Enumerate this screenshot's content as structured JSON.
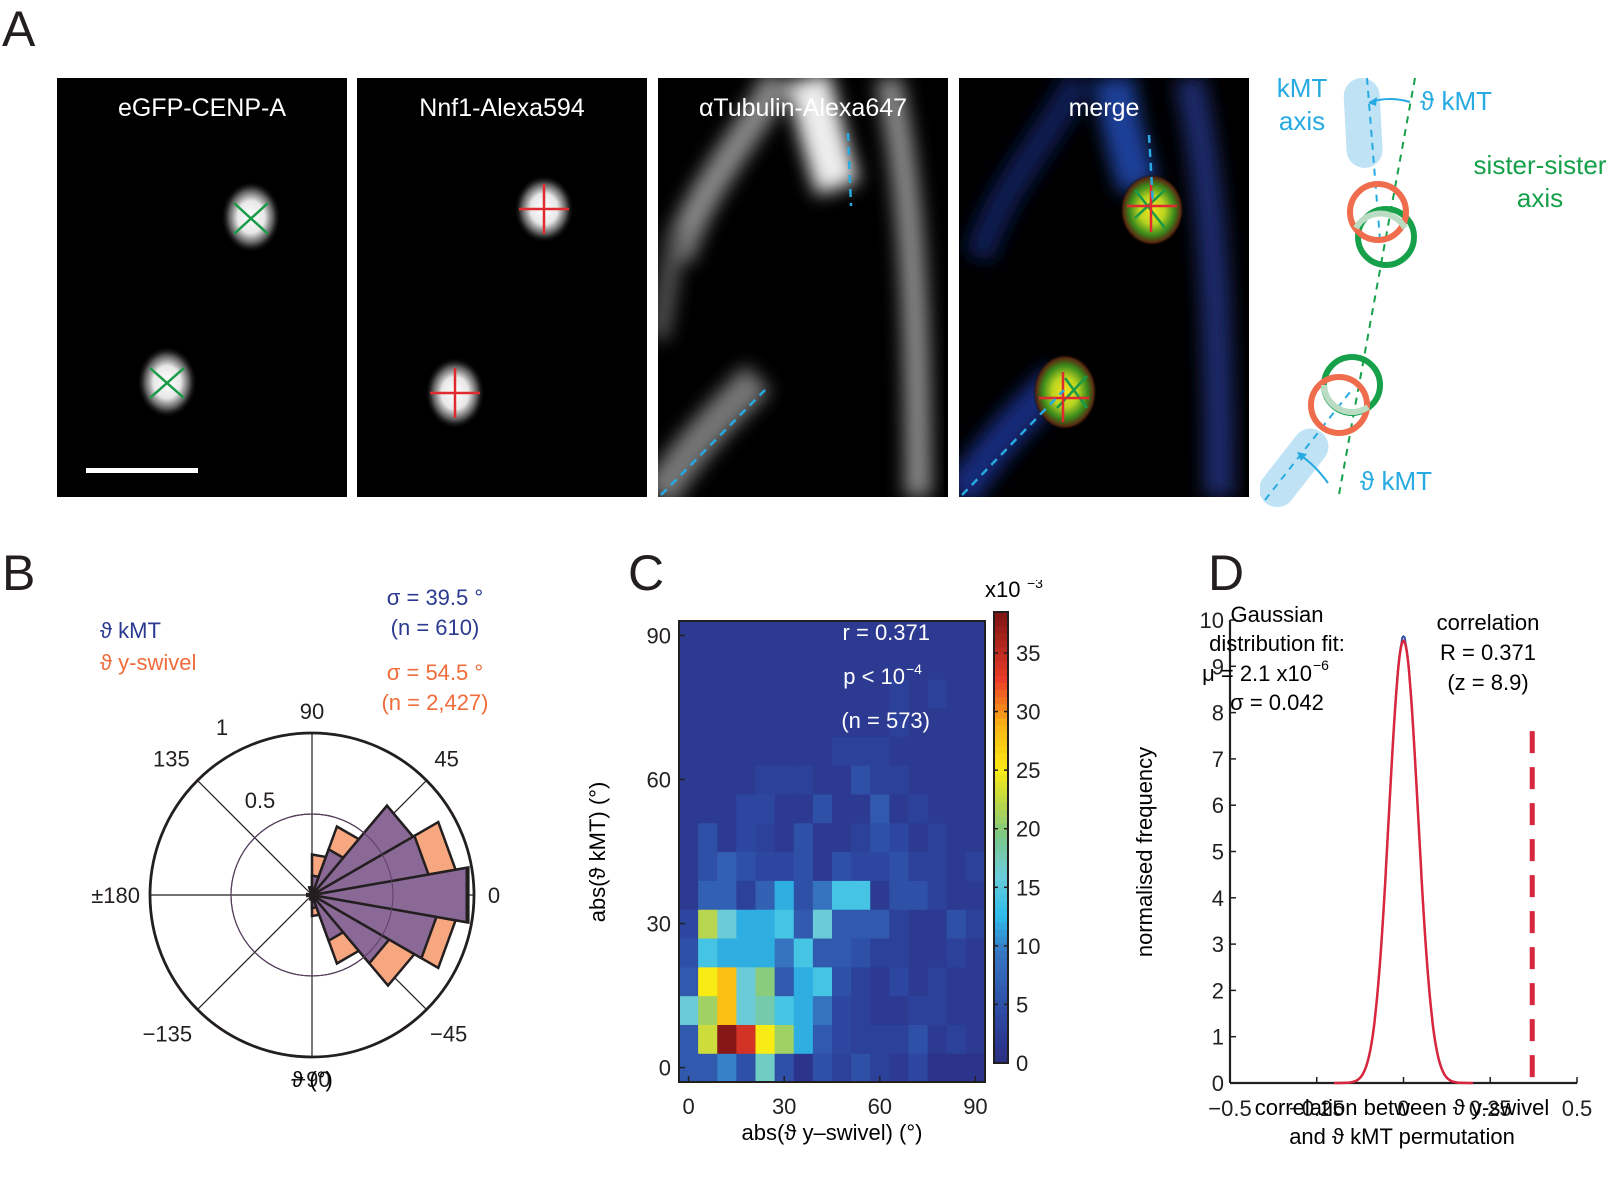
{
  "figure": {
    "panel_labels": {
      "A": "A",
      "B": "B",
      "C": "C",
      "D": "D"
    }
  },
  "panel_a": {
    "images": [
      {
        "title": "eGFP-CENP-A",
        "channel": "green",
        "marker": "x-marker"
      },
      {
        "title": "Nnf1-Alexa594",
        "channel": "red",
        "marker": "plus-marker"
      },
      {
        "title": "αTubulin-Alexa647",
        "channel": "tubulin"
      },
      {
        "title": "merge",
        "channel": "merge"
      }
    ],
    "schematic": {
      "kmt_axis_label_line1": "kMT",
      "kmt_axis_label_line2": "axis",
      "theta_kmt_top": "ϑ kMT",
      "sister_axis_line1": "sister-sister",
      "sister_axis_line2": "axis",
      "theta_kmt_bottom": "ϑ kMT",
      "colors": {
        "kmt": "#1ba1dc",
        "kmt_fill": "#bfe3f5",
        "sister": "#16a04a",
        "kinetochore_outer": "#ef6c4d"
      }
    }
  },
  "chart_data": [
    {
      "type": "polar-histogram",
      "title": "",
      "xlabel": "ϑ (°)",
      "legend": [
        {
          "name": "ϑ kMT",
          "color": "#2b3990",
          "fill": "#8b6996"
        },
        {
          "name": "ϑ y-swivel",
          "color": "#ef6c3b",
          "fill": "#f6a77f"
        }
      ],
      "legend_placement": "top-left",
      "annotations": [
        {
          "text": "σ = 39.5 °",
          "color": "#2b3990"
        },
        {
          "text": "(n = 610)",
          "color": "#2b3990"
        },
        {
          "text": "σ = 54.5 °",
          "color": "#ef6c3b"
        },
        {
          "text": "(n = 2,427)",
          "color": "#ef6c3b"
        }
      ],
      "angle_ticks": [
        {
          "angle": 90,
          "label": "90"
        },
        {
          "angle": 45,
          "label": "45"
        },
        {
          "angle": 0,
          "label": "0"
        },
        {
          "angle": -45,
          "label": "−45"
        },
        {
          "angle": -90,
          "label": "−90"
        },
        {
          "angle": -135,
          "label": "−135"
        },
        {
          "angle": 180,
          "label": "±180"
        },
        {
          "angle": 135,
          "label": "135"
        }
      ],
      "radial_ticks": [
        {
          "value": 0.5,
          "label": "0.5"
        },
        {
          "value": 1,
          "label": "1"
        }
      ],
      "rlim": [
        0,
        1
      ],
      "bin_width_deg": 20,
      "bin_centers": [
        -100,
        -80,
        -60,
        -40,
        -20,
        0,
        20,
        40,
        60,
        80,
        100,
        180
      ],
      "series": [
        {
          "name": "ϑ y-swivel",
          "values": [
            0.03,
            0.13,
            0.45,
            0.73,
            0.9,
            0.98,
            0.9,
            0.72,
            0.45,
            0.25,
            0.05,
            0.03
          ]
        },
        {
          "name": "ϑ kMT",
          "values": [
            0.02,
            0.08,
            0.3,
            0.55,
            0.78,
            0.97,
            0.73,
            0.72,
            0.3,
            0.12,
            0.04,
            0.02
          ]
        }
      ]
    },
    {
      "type": "heatmap",
      "xlabel": "abs(ϑ y–swivel) (°)",
      "ylabel": "abs(ϑ kMT) (°)",
      "x_ticks": [
        {
          "value": 0,
          "label": "0"
        },
        {
          "value": 30,
          "label": "30"
        },
        {
          "value": 60,
          "label": "60"
        },
        {
          "value": 90,
          "label": "90"
        }
      ],
      "y_ticks": [
        {
          "value": 0,
          "label": "0"
        },
        {
          "value": 30,
          "label": "30"
        },
        {
          "value": 60,
          "label": "60"
        },
        {
          "value": 90,
          "label": "90"
        }
      ],
      "xlim": [
        -3,
        93
      ],
      "ylim": [
        -3,
        93
      ],
      "bin_centers_deg": [
        0,
        6,
        12,
        18,
        24,
        30,
        36,
        42,
        48,
        54,
        60,
        66,
        72,
        78,
        84,
        90
      ],
      "annotations": [
        "r = 0.371",
        "p < 10",
        "(n = 573)"
      ],
      "annotation_exponent": "−4",
      "colorbar": {
        "label": "x10",
        "label_exponent": "−3",
        "range": [
          0,
          38.5
        ],
        "ticks": [
          "0",
          "5",
          "10",
          "15",
          "20",
          "25",
          "30",
          "35"
        ],
        "colormap": "jet"
      },
      "values_rows_bottom_to_top": [
        [
          6,
          6,
          10,
          5,
          17,
          5,
          1,
          5,
          3,
          5,
          3,
          2,
          4,
          1,
          1,
          1
        ],
        [
          6,
          23,
          38,
          34,
          25,
          21,
          12,
          6,
          4,
          3,
          3,
          3,
          5,
          2,
          3,
          2
        ],
        [
          16,
          21,
          28,
          16,
          18,
          14,
          12,
          9,
          4,
          3,
          2,
          2,
          3,
          3,
          2,
          2
        ],
        [
          6,
          25,
          28,
          16,
          20,
          6,
          12,
          14,
          5,
          3,
          2,
          4,
          2,
          3,
          2,
          2
        ],
        [
          5,
          14,
          12,
          12,
          12,
          9,
          14,
          6,
          6,
          5,
          3,
          3,
          2,
          2,
          3,
          2
        ],
        [
          4,
          22,
          16,
          12,
          12,
          14,
          6,
          16,
          6,
          6,
          6,
          3,
          2,
          2,
          5,
          3
        ],
        [
          2,
          7,
          7,
          3,
          7,
          12,
          5,
          9,
          14,
          14,
          2,
          5,
          5,
          3,
          2,
          2
        ],
        [
          2,
          5,
          7,
          5,
          4,
          4,
          5,
          2,
          5,
          4,
          4,
          5,
          3,
          3,
          2,
          3
        ],
        [
          2,
          5,
          2,
          4,
          3,
          2,
          5,
          2,
          2,
          3,
          5,
          4,
          2,
          3,
          2,
          2
        ],
        [
          2,
          2,
          2,
          4,
          4,
          2,
          2,
          5,
          2,
          2,
          6,
          2,
          3,
          2,
          2,
          2
        ],
        [
          2,
          2,
          2,
          2,
          3,
          3,
          3,
          2,
          2,
          5,
          3,
          3,
          2,
          2,
          2,
          2
        ],
        [
          2,
          2,
          2,
          2,
          2,
          2,
          2,
          2,
          3,
          3,
          3,
          2,
          2,
          2,
          2,
          2
        ],
        [
          2,
          2,
          2,
          2,
          2,
          2,
          2,
          2,
          2,
          2,
          2,
          3,
          2,
          2,
          2,
          2
        ],
        [
          2,
          2,
          2,
          2,
          2,
          2,
          2,
          2,
          2,
          2,
          2,
          3,
          2,
          3,
          2,
          2
        ],
        [
          2,
          2,
          2,
          2,
          2,
          2,
          2,
          2,
          2,
          2,
          2,
          2,
          2,
          2,
          2,
          2
        ],
        [
          2,
          2,
          2,
          2,
          2,
          2,
          2,
          2,
          2,
          2,
          2,
          2,
          2,
          2,
          2,
          2
        ]
      ]
    },
    {
      "type": "line",
      "xlabel_line1": "correlation between ϑ y-swivel",
      "xlabel_line2": "and ϑ kMT permutation",
      "ylabel": "normalised frequency",
      "xlim": [
        -0.5,
        0.5
      ],
      "ylim": [
        0,
        10
      ],
      "x_ticks": [
        {
          "value": -0.5,
          "label": "−0.5"
        },
        {
          "value": -0.25,
          "label": "−0.25"
        },
        {
          "value": 0,
          "label": "0"
        },
        {
          "value": 0.25,
          "label": "0.25"
        },
        {
          "value": 0.5,
          "label": "0.5"
        }
      ],
      "y_ticks": [
        0,
        1,
        2,
        3,
        4,
        5,
        6,
        7,
        8,
        9,
        10
      ],
      "gaussian_fit": {
        "mu": 2.1e-06,
        "sigma": 0.042,
        "peak": 9.55,
        "color": "#d7263d"
      },
      "histogram_color": "#3a53a4",
      "fit_annotation": [
        "Gaussian",
        "distribution fit:",
        "μ = 2.1 x10",
        "σ = 0.042"
      ],
      "fit_annotation_exponent": "−6",
      "observed": {
        "value": 0.371,
        "z": 8.9,
        "color": "#d7263d"
      },
      "observed_annotation": [
        "correlation",
        "R = 0.371",
        "(z = 8.9)"
      ]
    }
  ]
}
